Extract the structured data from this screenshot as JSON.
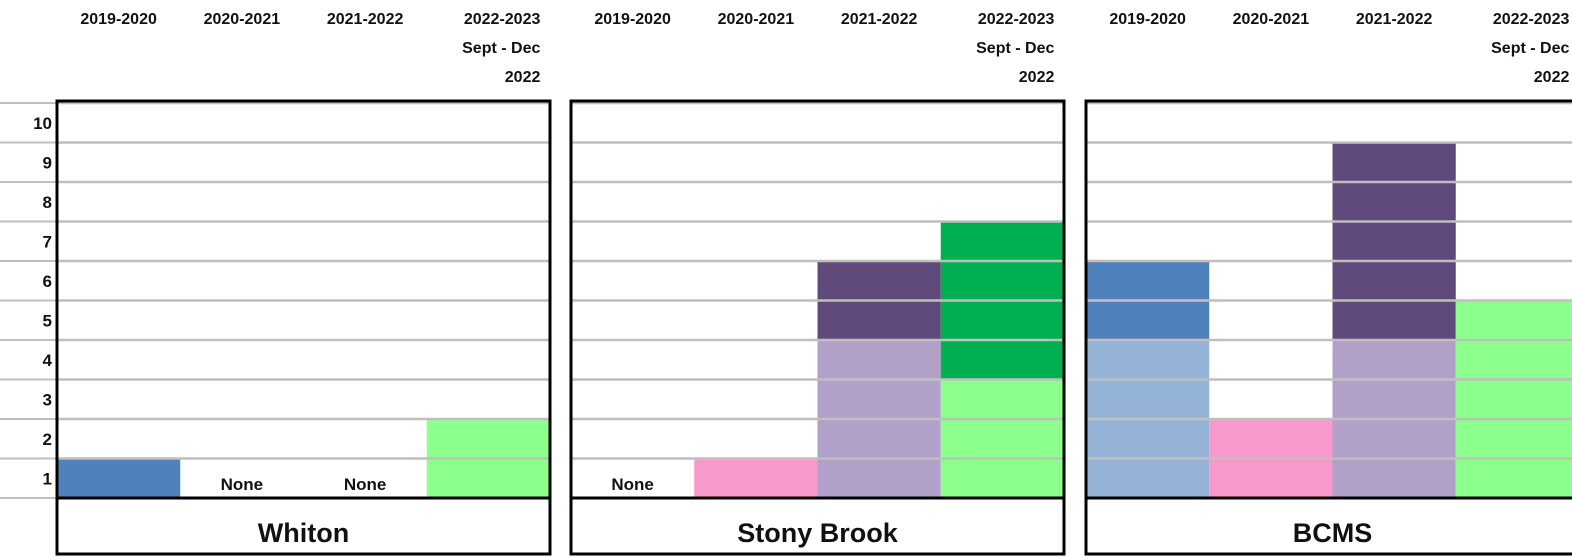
{
  "chart_data": {
    "type": "bar",
    "y_ticks": [
      "1",
      "2",
      "3",
      "4",
      "5",
      "6",
      "7",
      "8",
      "9",
      "10"
    ],
    "ylim": [
      0,
      10
    ],
    "grid": true,
    "category_lines": [
      [
        "2019-2020"
      ],
      [
        "2020-2021"
      ],
      [
        "2021-2022"
      ],
      [
        "2022-2023",
        "Sept - Dec",
        "2022"
      ]
    ],
    "colors": {
      "blue_dark": "#4f81bd",
      "blue_light": "#95b3d7",
      "pink": "#f899cc",
      "purple_dark": "#604a7b",
      "purple_light": "#b1a0c7",
      "green_light": "#8cff8c",
      "green_dark": "#00b050",
      "gridline": "#bfbfbf",
      "border": "#000000"
    },
    "panels": [
      {
        "school": "Whiton",
        "bars": [
          {
            "category": "2019-2020",
            "none_label": "",
            "segments": [
              {
                "value": 1,
                "color": "blue_dark"
              }
            ]
          },
          {
            "category": "2020-2021",
            "none_label": "None",
            "segments": []
          },
          {
            "category": "2021-2022",
            "none_label": "None",
            "segments": []
          },
          {
            "category": "2022-2023 Sept - Dec 2022",
            "none_label": "",
            "segments": [
              {
                "value": 2,
                "color": "green_light"
              }
            ]
          }
        ]
      },
      {
        "school": "Stony Brook",
        "bars": [
          {
            "category": "2019-2020",
            "none_label": "None",
            "segments": []
          },
          {
            "category": "2020-2021",
            "none_label": "",
            "segments": [
              {
                "value": 1,
                "color": "pink"
              }
            ]
          },
          {
            "category": "2021-2022",
            "none_label": "",
            "segments": [
              {
                "value": 4,
                "color": "purple_light"
              },
              {
                "value": 2,
                "color": "purple_dark"
              }
            ]
          },
          {
            "category": "2022-2023 Sept - Dec 2022",
            "none_label": "",
            "segments": [
              {
                "value": 3,
                "color": "green_light"
              },
              {
                "value": 4,
                "color": "green_dark"
              }
            ]
          }
        ]
      },
      {
        "school": "BCMS",
        "bars": [
          {
            "category": "2019-2020",
            "none_label": "",
            "segments": [
              {
                "value": 4,
                "color": "blue_light"
              },
              {
                "value": 2,
                "color": "blue_dark"
              }
            ]
          },
          {
            "category": "2020-2021",
            "none_label": "",
            "segments": [
              {
                "value": 2,
                "color": "pink"
              }
            ]
          },
          {
            "category": "2021-2022",
            "none_label": "",
            "segments": [
              {
                "value": 4,
                "color": "purple_light"
              },
              {
                "value": 5,
                "color": "purple_dark"
              }
            ]
          },
          {
            "category": "2022-2023 Sept - Dec 2022",
            "none_label": "",
            "segments": [
              {
                "value": 5,
                "color": "green_light"
              }
            ]
          }
        ]
      }
    ]
  }
}
